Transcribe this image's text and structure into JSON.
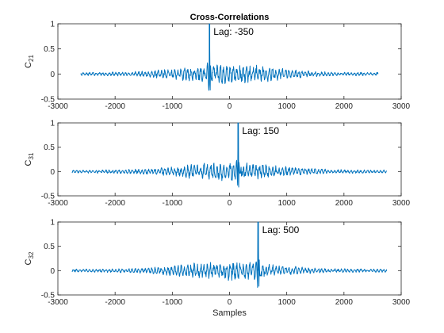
{
  "colors": {
    "line": "#0072bd",
    "axis": "#262626",
    "background": "#ffffff"
  },
  "chart_data": [
    {
      "type": "line",
      "title": "Cross-Correlations",
      "ylabel_base": "C",
      "ylabel_sub": "21",
      "xlabel": "",
      "xlim": [
        -3000,
        3000
      ],
      "ylim": [
        -0.5,
        1
      ],
      "xticks": [
        -3000,
        -2000,
        -1000,
        0,
        1000,
        2000,
        3000
      ],
      "xtick_labels": [
        "-3000",
        "-2000",
        "-1000",
        "0",
        "1000",
        "2000",
        "3000"
      ],
      "yticks": [
        -0.5,
        0,
        0.5,
        1
      ],
      "ytick_labels": [
        "-0.5",
        "0",
        "0.5",
        "1"
      ],
      "extent": [
        -2600,
        2600
      ],
      "peak_lag": -350,
      "peak_value": 1.0,
      "annotation": "Lag: -350",
      "seed": 7
    },
    {
      "type": "line",
      "title": "",
      "ylabel_base": "C",
      "ylabel_sub": "31",
      "xlabel": "",
      "xlim": [
        -3000,
        3000
      ],
      "ylim": [
        -0.5,
        1
      ],
      "xticks": [
        -3000,
        -2000,
        -1000,
        0,
        1000,
        2000,
        3000
      ],
      "xtick_labels": [
        "-3000",
        "-2000",
        "-1000",
        "0",
        "1000",
        "2000",
        "3000"
      ],
      "yticks": [
        -0.5,
        0,
        0.5,
        1
      ],
      "ytick_labels": [
        "-0.5",
        "0",
        "0.5",
        "1"
      ],
      "extent": [
        -2750,
        2750
      ],
      "peak_lag": 150,
      "peak_value": 1.0,
      "annotation": "Lag: 150",
      "seed": 19
    },
    {
      "type": "line",
      "title": "",
      "ylabel_base": "C",
      "ylabel_sub": "32",
      "xlabel": "Samples",
      "xlim": [
        -3000,
        3000
      ],
      "ylim": [
        -0.5,
        1
      ],
      "xticks": [
        -3000,
        -2000,
        -1000,
        0,
        1000,
        2000,
        3000
      ],
      "xtick_labels": [
        "-3000",
        "-2000",
        "-1000",
        "0",
        "1000",
        "2000",
        "3000"
      ],
      "yticks": [
        -0.5,
        0,
        0.5,
        1
      ],
      "ytick_labels": [
        "-0.5",
        "0",
        "0.5",
        "1"
      ],
      "extent": [
        -2750,
        2750
      ],
      "peak_lag": 500,
      "peak_value": 1.0,
      "annotation": "Lag: 500",
      "seed": 31
    }
  ]
}
